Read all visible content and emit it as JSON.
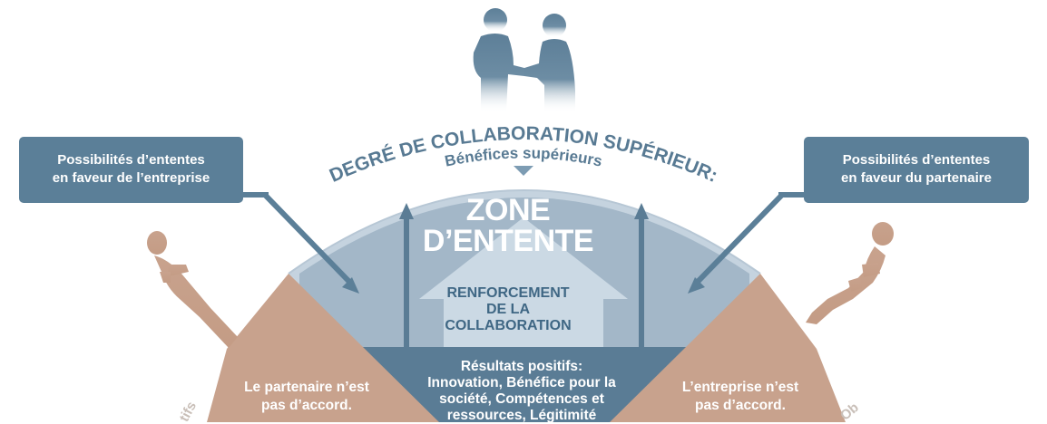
{
  "header": {
    "arc_title": "DEGRÉ DE COLLABORATION SUPÉRIEUR:",
    "arc_subtitle": "Bénéfices supérieurs"
  },
  "callouts": {
    "left": {
      "line1": "Possibilités d’ententes",
      "line2": "en faveur de l’entreprise"
    },
    "right": {
      "line1": "Possibilités d’ententes",
      "line2": "en faveur du partenaire"
    }
  },
  "zone": {
    "title_line1": "ZONE",
    "title_line2": "D’ENTENTE",
    "house_line1": "RENFORCEMENT",
    "house_line2": "DE LA",
    "house_line3": "COLLABORATION"
  },
  "results": {
    "line1": "Résultats positifs:",
    "line2": "Innovation, Bénéfice pour la",
    "line3": "société, Compétences et",
    "line4": "ressources, Légitimité"
  },
  "sides": {
    "left": {
      "line1": "Le partenaire n’est",
      "line2": "pas d’accord."
    },
    "right": {
      "line1": "L’entreprise n’est",
      "line2": "pas d’accord."
    }
  },
  "cut_off": {
    "left": "tifs",
    "right": "Ob"
  },
  "colors": {
    "callout_blue": "#5b7f98",
    "dark_band": "#5a7c95",
    "zone_blue": "#a3b7c8",
    "arc_light": "#c5d3df",
    "house": "#cbd9e4",
    "sand": "#c8a28d",
    "sand_figure": "#c49c85",
    "people": "#5d7f98"
  }
}
